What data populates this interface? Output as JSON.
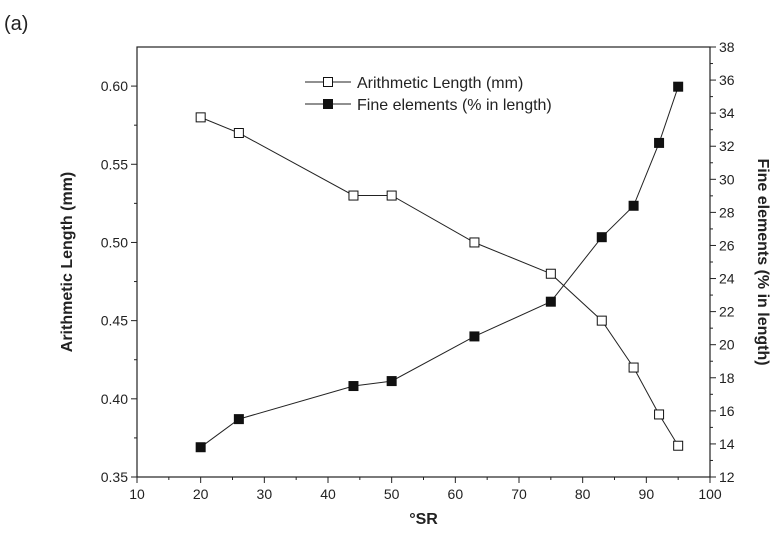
{
  "panel_label": "(a)",
  "chart_data": {
    "type": "line",
    "xlabel": "°SR",
    "ylabel_left": "Arithmetic Length (mm)",
    "ylabel_right": "Fine elements (% in length)",
    "xlim": [
      10,
      100
    ],
    "xticks": [
      10,
      20,
      30,
      40,
      50,
      60,
      70,
      80,
      90,
      100
    ],
    "ylim_left": [
      0.35,
      0.625
    ],
    "yticks_left": [
      "0.35",
      "0.40",
      "0.45",
      "0.50",
      "0.55",
      "0.60"
    ],
    "ylim_right": [
      12,
      38
    ],
    "yticks_right": [
      12,
      14,
      16,
      18,
      20,
      22,
      24,
      26,
      28,
      30,
      32,
      34,
      36,
      38
    ],
    "grid": false,
    "legend_position": "top-center",
    "series": [
      {
        "name": "Arithmetic Length (mm)",
        "axis": "left",
        "marker": "open-square",
        "x": [
          20,
          26,
          44,
          50,
          63,
          75,
          83,
          88,
          92,
          95
        ],
        "values": [
          0.58,
          0.57,
          0.53,
          0.53,
          0.5,
          0.48,
          0.45,
          0.42,
          0.39,
          0.37
        ]
      },
      {
        "name": "Fine elements (% in length)",
        "axis": "right",
        "marker": "filled-square",
        "x": [
          20,
          26,
          44,
          50,
          63,
          75,
          83,
          88,
          92,
          95
        ],
        "values": [
          13.8,
          15.5,
          17.5,
          17.8,
          20.5,
          22.6,
          26.5,
          28.4,
          32.2,
          35.6
        ]
      }
    ]
  }
}
